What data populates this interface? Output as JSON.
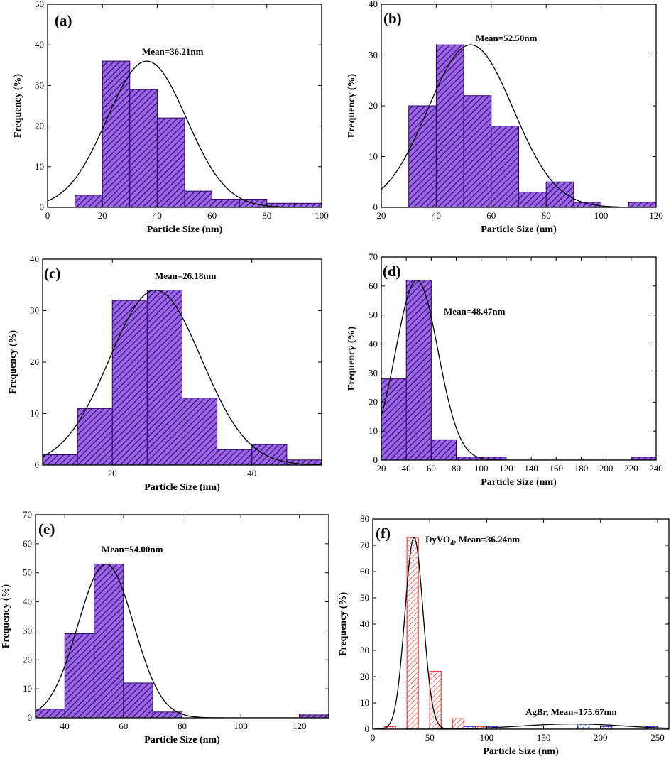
{
  "colors": {
    "purple_fill": "#9a66e6",
    "purple_hatch": "#2a0066",
    "red_fill": "#ffffff",
    "red_hatch": "#ff1a1a",
    "blue_fill": "#ffffff",
    "blue_hatch": "#1a1aff",
    "curve": "#000000"
  },
  "chart_data": [
    {
      "type": "bar",
      "panel_label": "(a)",
      "annotation": "Mean=36.21nm",
      "xlabel": "Particle Size (nm)",
      "ylabel": "Frequency (%)",
      "xlim": [
        0,
        100
      ],
      "ylim": [
        0,
        50
      ],
      "xticks": [
        0,
        20,
        40,
        60,
        80,
        100
      ],
      "yticks": [
        0,
        10,
        20,
        30,
        40,
        50
      ],
      "series": [
        {
          "name": "histogram",
          "style": "purple",
          "bins": [
            [
              10,
              20,
              3
            ],
            [
              20,
              30,
              36
            ],
            [
              30,
              40,
              29
            ],
            [
              40,
              50,
              22
            ],
            [
              50,
              60,
              4
            ],
            [
              60,
              70,
              2
            ],
            [
              70,
              80,
              2
            ],
            [
              80,
              90,
              1
            ],
            [
              90,
              100,
              1
            ]
          ],
          "fit": {
            "mean": 36.21,
            "sigma": 14.5,
            "peak": 36
          }
        }
      ]
    },
    {
      "type": "bar",
      "panel_label": "(b)",
      "annotation": "Mean=52.50nm",
      "xlabel": "Particle Size (nm)",
      "ylabel": "Frequency (%)",
      "xlim": [
        20,
        120
      ],
      "ylim": [
        0,
        40
      ],
      "xticks": [
        20,
        40,
        60,
        80,
        100,
        120
      ],
      "yticks": [
        0,
        10,
        20,
        30,
        40
      ],
      "series": [
        {
          "name": "histogram",
          "style": "purple",
          "bins": [
            [
              30,
              40,
              20
            ],
            [
              40,
              50,
              32
            ],
            [
              50,
              60,
              22
            ],
            [
              60,
              70,
              16
            ],
            [
              70,
              80,
              3
            ],
            [
              80,
              90,
              5
            ],
            [
              90,
              100,
              1
            ],
            [
              110,
              120,
              1
            ]
          ],
          "fit": {
            "mean": 52.5,
            "sigma": 15.5,
            "peak": 32
          }
        }
      ]
    },
    {
      "type": "bar",
      "panel_label": "(c)",
      "annotation": "Mean=26.18nm",
      "xlabel": "Particle Size (nm)",
      "ylabel": "Frequency (%)",
      "xlim": [
        10,
        50
      ],
      "ylim": [
        0,
        40
      ],
      "xticks": [
        20,
        40
      ],
      "yticks": [
        0,
        10,
        20,
        30,
        40
      ],
      "series": [
        {
          "name": "histogram",
          "style": "purple",
          "bins": [
            [
              10,
              15,
              2
            ],
            [
              15,
              20,
              11
            ],
            [
              20,
              25,
              32
            ],
            [
              25,
              30,
              34
            ],
            [
              30,
              35,
              13
            ],
            [
              35,
              40,
              3
            ],
            [
              40,
              45,
              4
            ],
            [
              45,
              50,
              1
            ]
          ],
          "fit": {
            "mean": 26.18,
            "sigma": 6.6,
            "peak": 34
          }
        }
      ]
    },
    {
      "type": "bar",
      "panel_label": "(d)",
      "annotation": "Mean=48.47nm",
      "xlabel": "Particle Size (nm)",
      "ylabel": "Frequency (%)",
      "xlim": [
        20,
        240
      ],
      "ylim": [
        0,
        70
      ],
      "xticks": [
        20,
        40,
        60,
        80,
        100,
        120,
        140,
        160,
        180,
        200,
        220,
        240
      ],
      "yticks": [
        0,
        10,
        20,
        30,
        40,
        50,
        60,
        70
      ],
      "series": [
        {
          "name": "histogram",
          "style": "purple",
          "bins": [
            [
              20,
              40,
              28
            ],
            [
              40,
              60,
              62
            ],
            [
              60,
              80,
              7
            ],
            [
              80,
              100,
              1
            ],
            [
              100,
              120,
              1
            ],
            [
              220,
              240,
              1
            ]
          ],
          "fit": {
            "mean": 48.47,
            "sigma": 17,
            "peak": 62
          }
        }
      ]
    },
    {
      "type": "bar",
      "panel_label": "(e)",
      "annotation": "Mean=54.00nm",
      "xlabel": "Particle Size (nm)",
      "ylabel": "Frequency (%)",
      "xlim": [
        30,
        130
      ],
      "ylim": [
        0,
        70
      ],
      "xticks": [
        40,
        60,
        80,
        100,
        120
      ],
      "yticks": [
        0,
        10,
        20,
        30,
        40,
        50,
        60,
        70
      ],
      "series": [
        {
          "name": "histogram",
          "style": "purple",
          "bins": [
            [
              30,
              40,
              3
            ],
            [
              40,
              50,
              29
            ],
            [
              50,
              60,
              53
            ],
            [
              60,
              70,
              12
            ],
            [
              70,
              80,
              2
            ],
            [
              120,
              130,
              1
            ]
          ],
          "fit": {
            "mean": 54,
            "sigma": 9.5,
            "peak": 53
          }
        }
      ]
    },
    {
      "type": "bar",
      "panel_label": "(f)",
      "annotation": "DyVO",
      "annotation_sub": "4",
      "annotation_rest": ", Mean=36.24nm",
      "annotation2": "AgBr, Mean=175.67nm",
      "xlabel": "Particle Size (nm)",
      "ylabel": "Frequency (%)",
      "xlim": [
        0,
        260
      ],
      "ylim": [
        0,
        80
      ],
      "xticks": [
        0,
        50,
        100,
        150,
        200,
        250
      ],
      "yticks": [
        0,
        10,
        20,
        30,
        40,
        50,
        60,
        70,
        80
      ],
      "series": [
        {
          "name": "DyVO4",
          "style": "red",
          "bins": [
            [
              10,
              20,
              1
            ],
            [
              30,
              40,
              73
            ],
            [
              50,
              60,
              22
            ],
            [
              70,
              80,
              4
            ],
            [
              90,
              100,
              1
            ]
          ],
          "fit": {
            "mean": 36.24,
            "sigma": 8,
            "peak": 73
          }
        },
        {
          "name": "AgBr",
          "style": "blue",
          "bins": [
            [
              80,
              90,
              1
            ],
            [
              100,
              110,
              1
            ],
            [
              180,
              190,
              2
            ],
            [
              200,
              210,
              1
            ],
            [
              240,
              250,
              1
            ]
          ],
          "fit": {
            "mean": 175.67,
            "sigma": 45,
            "peak": 2
          }
        }
      ]
    }
  ]
}
